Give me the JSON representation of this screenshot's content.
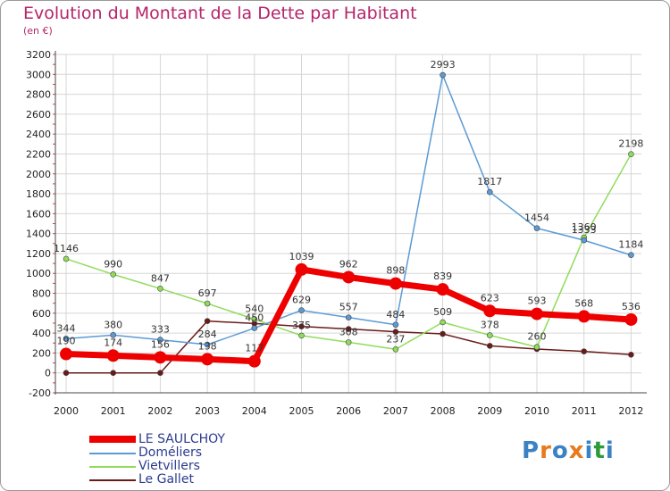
{
  "header": {
    "title": "Evolution du Montant de la Dette par Habitant",
    "subtitle": "(en €)"
  },
  "logo": {
    "text": "Proxiti",
    "colors": [
      "#3b82c4",
      "#e8791e",
      "#3b82c4",
      "#e8791e",
      "#3b82c4",
      "#2e9a3a",
      "#3b82c4"
    ]
  },
  "chart_data": {
    "type": "line",
    "title": "Evolution du Montant de la Dette par Habitant",
    "ylabel": "(en €)",
    "xlabel": "",
    "ylim": [
      -200,
      3200
    ],
    "yticks": [
      -200,
      0,
      200,
      400,
      600,
      800,
      1000,
      1200,
      1400,
      1600,
      1800,
      2000,
      2200,
      2400,
      2600,
      2800,
      3000,
      3200
    ],
    "x": [
      "2000",
      "2001",
      "2002",
      "2003",
      "2004",
      "2005",
      "2006",
      "2007",
      "2008",
      "2009",
      "2010",
      "2011",
      "2012"
    ],
    "grid": true,
    "legend_position": "bottom-left",
    "series": [
      {
        "name": "Le Gallet",
        "color": "#6b1a1a",
        "width": 1.5,
        "marker": 3,
        "labels": false,
        "values": [
          0,
          0,
          0,
          521,
          496,
          467,
          441,
          413,
          392,
          272,
          240,
          216,
          183
        ]
      },
      {
        "name": "Vietvillers",
        "color": "#8fdc5a",
        "width": 1.5,
        "marker": 3,
        "labels": true,
        "values": [
          1146,
          990,
          847,
          697,
          540,
          375,
          308,
          237,
          509,
          378,
          260,
          1360,
          2198
        ]
      },
      {
        "name": "Doméliers",
        "color": "#5b9bd5",
        "width": 1.5,
        "marker": 3,
        "labels": true,
        "values": [
          344,
          380,
          333,
          284,
          450,
          629,
          557,
          484,
          2993,
          1817,
          1454,
          1333,
          1184
        ]
      },
      {
        "name": "LE SAULCHOY",
        "color": "#ee0000",
        "width": 7,
        "marker": 7,
        "labels": true,
        "values": [
          190,
          174,
          156,
          138,
          117,
          1039,
          962,
          898,
          839,
          623,
          593,
          568,
          536
        ]
      }
    ],
    "legend_order": [
      "LE SAULCHOY",
      "Doméliers",
      "Vietvillers",
      "Le Gallet"
    ]
  }
}
